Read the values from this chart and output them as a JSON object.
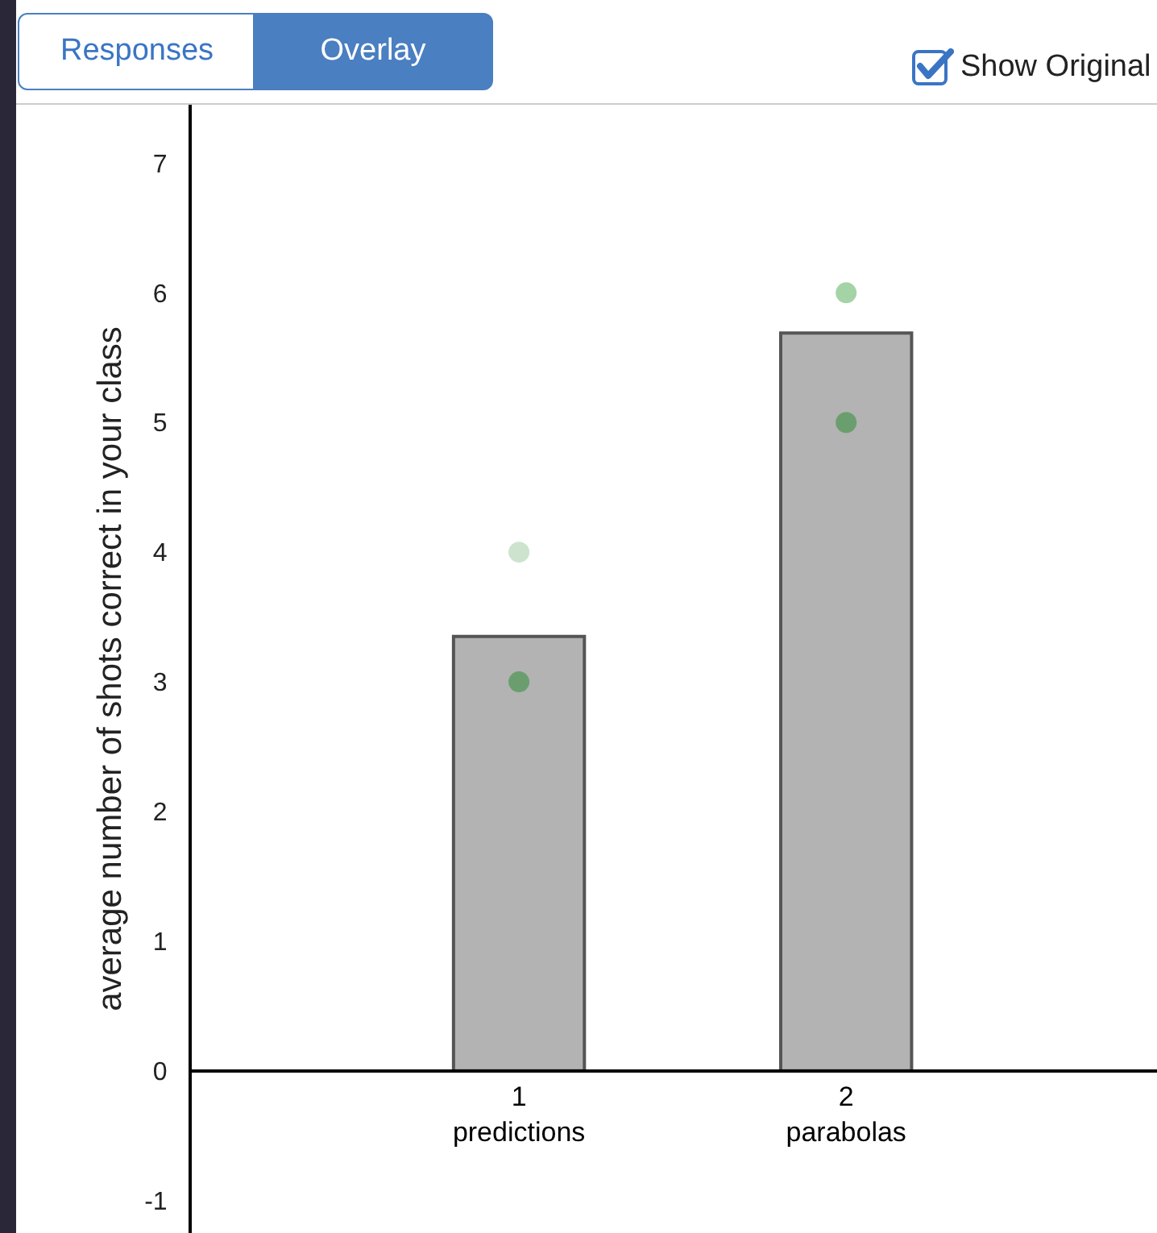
{
  "chart_data": {
    "type": "bar",
    "ylabel": "average number of shots correct in your class",
    "annotations": [
      "Responses",
      "Overlay",
      "Show Original"
    ],
    "x": [
      1,
      2
    ],
    "xlim": [
      0,
      2.95
    ],
    "xticks": [
      {
        "value": 1,
        "label": "1\npredictions"
      },
      {
        "value": 2,
        "label": "2\nparabolas"
      }
    ],
    "ylim": [
      -1.25,
      7.45
    ],
    "yticks": [
      -1,
      0,
      1,
      2,
      3,
      4,
      5,
      6,
      7
    ],
    "grid": false,
    "series": [
      {
        "color": "#b3b3b3",
        "values": [
          3.35,
          5.69
        ]
      },
      {
        "type": "scatter",
        "color": "#6b9e6e",
        "values": [
          3,
          5
        ]
      },
      {
        "type": "scatter",
        "colors": [
          "#cde3cd",
          "#a4d4a6"
        ],
        "values": [
          4,
          6
        ]
      }
    ],
    "marker": "circle"
  }
}
